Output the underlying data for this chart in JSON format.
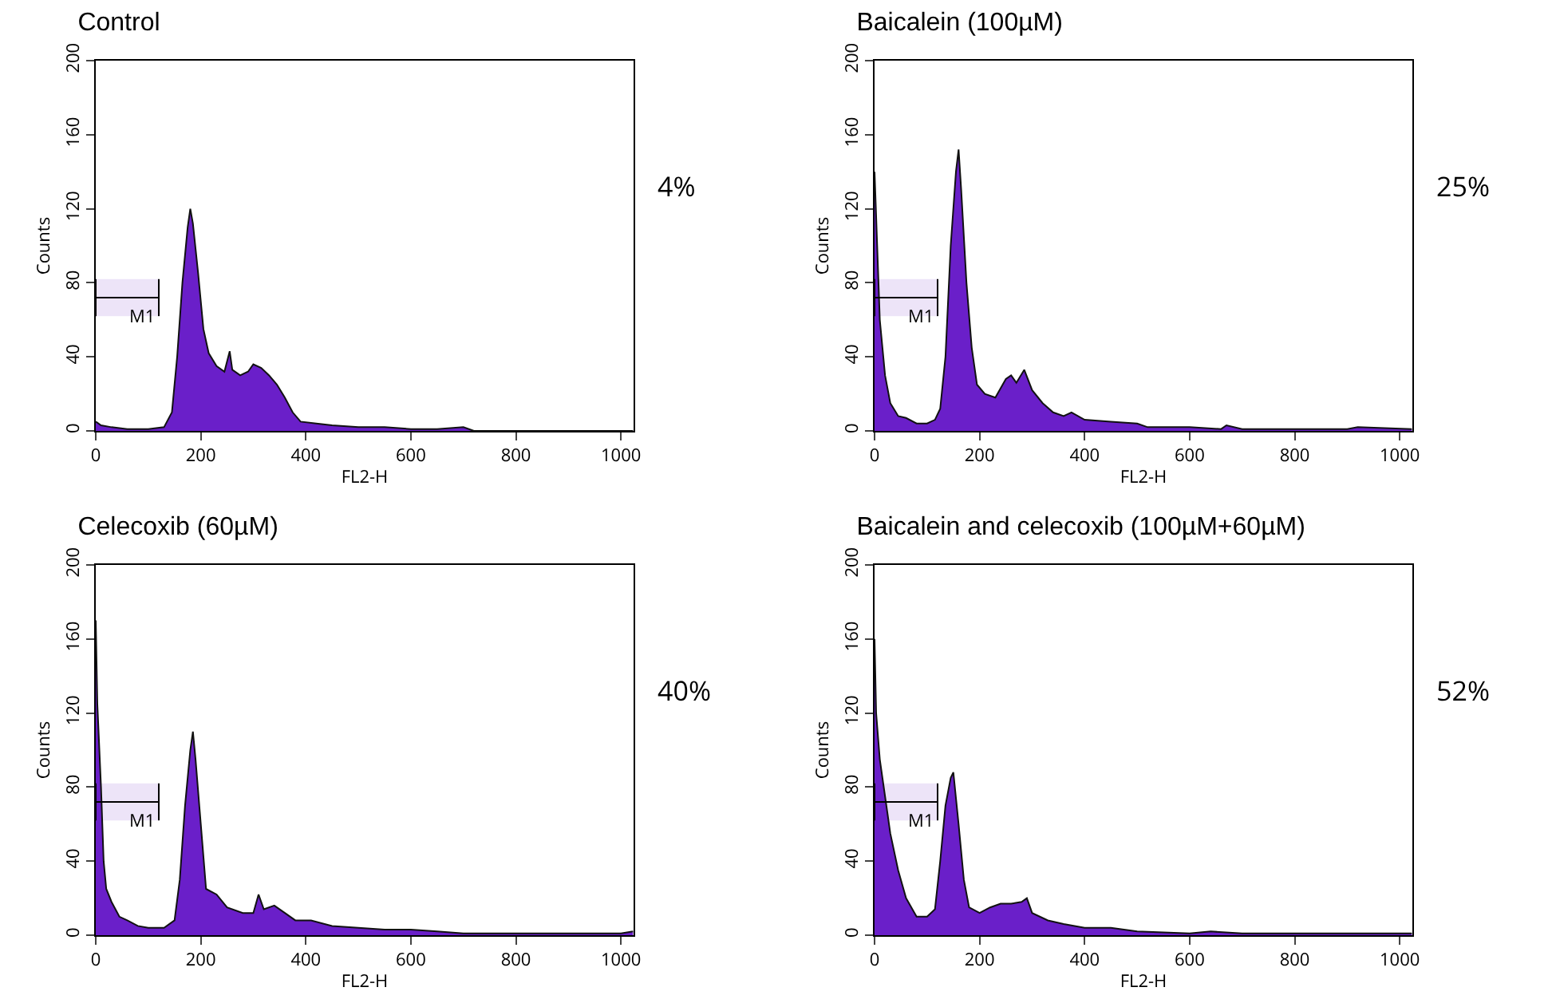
{
  "chart_data": [
    {
      "type": "area",
      "title": "Control",
      "xlabel": "FL2-H",
      "ylabel": "Counts",
      "xlim": [
        0,
        1024
      ],
      "ylim": [
        0,
        200
      ],
      "xticks": [
        0,
        200,
        400,
        600,
        800,
        1000
      ],
      "yticks": [
        0,
        40,
        80,
        120,
        160,
        200
      ],
      "annotations": [
        "4%"
      ],
      "bands": [
        {
          "axis": "x",
          "from": 0,
          "to": 120,
          "label": "M1"
        }
      ],
      "series": [
        {
          "color": "#6a1fc9",
          "x": [
            0,
            10,
            30,
            60,
            100,
            130,
            145,
            155,
            165,
            175,
            180,
            185,
            195,
            205,
            215,
            230,
            245,
            255,
            260,
            275,
            290,
            300,
            315,
            330,
            345,
            360,
            375,
            390,
            420,
            450,
            500,
            550,
            600,
            650,
            700,
            720,
            800,
            900,
            1023
          ],
          "values": [
            5,
            3,
            2,
            1,
            1,
            2,
            10,
            40,
            80,
            110,
            120,
            112,
            85,
            55,
            42,
            35,
            32,
            43,
            33,
            30,
            32,
            36,
            34,
            30,
            25,
            18,
            10,
            5,
            4,
            3,
            2,
            2,
            1,
            1,
            2,
            0,
            0,
            0,
            0
          ]
        }
      ]
    },
    {
      "type": "area",
      "title": "Baicalein (100µM)",
      "xlabel": "FL2-H",
      "ylabel": "Counts",
      "xlim": [
        0,
        1024
      ],
      "ylim": [
        0,
        200
      ],
      "xticks": [
        0,
        200,
        400,
        600,
        800,
        1000
      ],
      "yticks": [
        0,
        40,
        80,
        120,
        160,
        200
      ],
      "annotations": [
        "25%"
      ],
      "bands": [
        {
          "axis": "x",
          "from": 0,
          "to": 120,
          "label": "M1"
        }
      ],
      "series": [
        {
          "color": "#6a1fc9",
          "x": [
            0,
            5,
            10,
            20,
            30,
            45,
            60,
            80,
            100,
            115,
            125,
            135,
            145,
            155,
            160,
            165,
            175,
            185,
            195,
            210,
            230,
            250,
            260,
            270,
            285,
            300,
            320,
            340,
            360,
            375,
            400,
            450,
            500,
            520,
            600,
            660,
            670,
            700,
            800,
            900,
            920,
            1023
          ],
          "values": [
            140,
            100,
            60,
            30,
            15,
            8,
            7,
            4,
            4,
            6,
            12,
            40,
            100,
            140,
            152,
            130,
            80,
            45,
            25,
            20,
            18,
            28,
            30,
            26,
            33,
            22,
            15,
            10,
            8,
            10,
            6,
            5,
            4,
            2,
            2,
            1,
            3,
            1,
            1,
            1,
            2,
            1
          ]
        }
      ]
    },
    {
      "type": "area",
      "title": "Celecoxib (60µM)",
      "xlabel": "FL2-H",
      "ylabel": "Counts",
      "xlim": [
        0,
        1024
      ],
      "ylim": [
        0,
        200
      ],
      "xticks": [
        0,
        200,
        400,
        600,
        800,
        1000
      ],
      "yticks": [
        0,
        40,
        80,
        120,
        160,
        200
      ],
      "annotations": [
        "40%"
      ],
      "bands": [
        {
          "axis": "x",
          "from": 0,
          "to": 120,
          "label": "M1"
        }
      ],
      "series": [
        {
          "color": "#6a1fc9",
          "x": [
            0,
            3,
            10,
            15,
            20,
            30,
            45,
            60,
            80,
            100,
            130,
            150,
            160,
            170,
            180,
            185,
            190,
            200,
            210,
            230,
            250,
            280,
            300,
            310,
            320,
            340,
            360,
            380,
            410,
            450,
            500,
            550,
            600,
            650,
            700,
            800,
            900,
            1000,
            1023
          ],
          "values": [
            170,
            125,
            80,
            40,
            25,
            18,
            10,
            8,
            5,
            4,
            4,
            8,
            30,
            70,
            100,
            110,
            95,
            60,
            25,
            22,
            15,
            12,
            12,
            22,
            14,
            16,
            12,
            8,
            8,
            5,
            4,
            3,
            3,
            2,
            1,
            1,
            1,
            1,
            2
          ]
        }
      ]
    },
    {
      "type": "area",
      "title": "Baicalein and celecoxib (100µM+60µM)",
      "xlabel": "FL2-H",
      "ylabel": "Counts",
      "xlim": [
        0,
        1024
      ],
      "ylim": [
        0,
        200
      ],
      "xticks": [
        0,
        200,
        400,
        600,
        800,
        1000
      ],
      "yticks": [
        0,
        40,
        80,
        120,
        160,
        200
      ],
      "annotations": [
        "52%"
      ],
      "bands": [
        {
          "axis": "x",
          "from": 0,
          "to": 120,
          "label": "M1"
        }
      ],
      "series": [
        {
          "color": "#6a1fc9",
          "x": [
            0,
            3,
            10,
            20,
            30,
            45,
            60,
            80,
            100,
            115,
            125,
            135,
            145,
            150,
            160,
            170,
            180,
            200,
            220,
            240,
            260,
            280,
            290,
            300,
            330,
            360,
            400,
            450,
            500,
            600,
            640,
            700,
            800,
            1023
          ],
          "values": [
            160,
            120,
            95,
            75,
            55,
            35,
            20,
            10,
            10,
            14,
            40,
            70,
            85,
            88,
            60,
            30,
            15,
            12,
            15,
            17,
            17,
            18,
            20,
            12,
            8,
            6,
            4,
            4,
            2,
            1,
            2,
            1,
            1,
            1
          ]
        }
      ]
    }
  ]
}
